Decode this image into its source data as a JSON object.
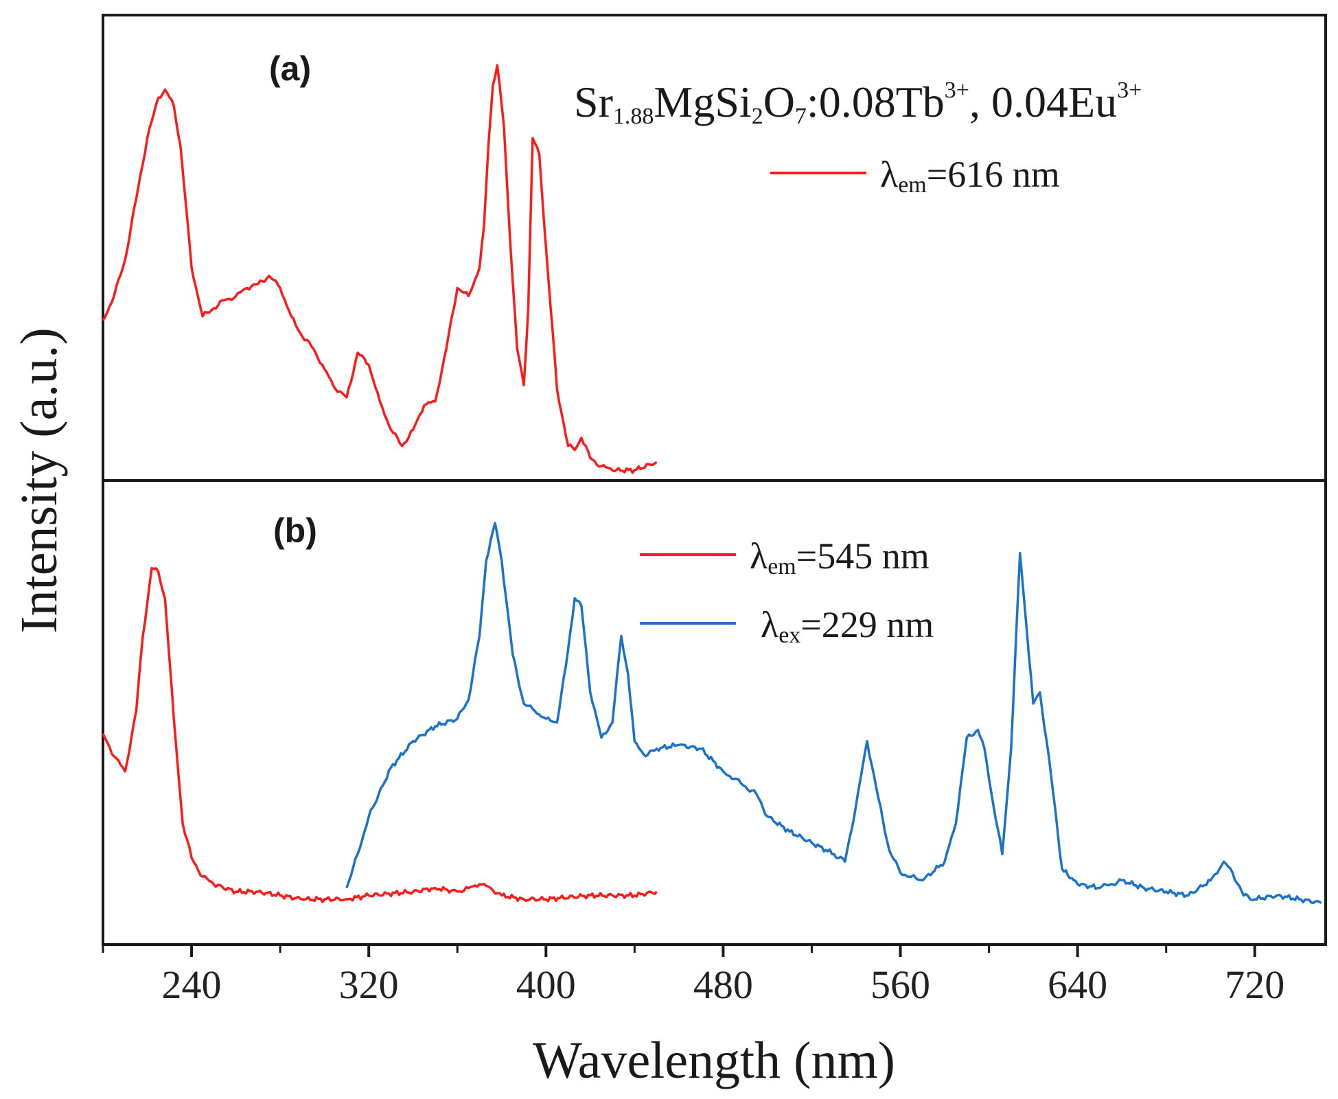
{
  "chart_data": [
    {
      "panel": "a",
      "type": "line",
      "panel_label": "(a)",
      "compound": {
        "prefix": "Sr",
        "sub1": "1.88",
        "mid1": "MgSi",
        "sub2": "2",
        "mid2": "O",
        "sub3": "7",
        "mid3": ":0.08Tb",
        "sup1": "3+",
        "mid4": ", 0.04Eu",
        "sup2": "3+"
      },
      "series": [
        {
          "name": "excitation at 616 nm emission",
          "legend": {
            "symbol": "λ",
            "sub": "em",
            "value": "=616 nm"
          },
          "color": "#ff1a1a",
          "x": [
            200,
            205,
            210,
            215,
            220,
            225,
            228,
            232,
            235,
            240,
            245,
            250,
            255,
            260,
            265,
            270,
            275,
            280,
            285,
            290,
            295,
            300,
            305,
            310,
            315,
            320,
            325,
            330,
            335,
            340,
            345,
            350,
            355,
            360,
            365,
            370,
            372,
            374,
            376,
            378,
            381,
            384,
            387,
            390,
            392,
            394,
            397,
            400,
            405,
            410,
            413,
            416,
            420,
            425,
            430,
            440,
            450
          ],
          "y": [
            0.37,
            0.43,
            0.52,
            0.67,
            0.82,
            0.92,
            0.94,
            0.9,
            0.8,
            0.5,
            0.38,
            0.4,
            0.42,
            0.43,
            0.45,
            0.46,
            0.48,
            0.45,
            0.38,
            0.33,
            0.3,
            0.25,
            0.2,
            0.18,
            0.29,
            0.26,
            0.17,
            0.1,
            0.06,
            0.1,
            0.16,
            0.17,
            0.3,
            0.45,
            0.43,
            0.5,
            0.6,
            0.8,
            0.95,
            1.0,
            0.85,
            0.55,
            0.3,
            0.21,
            0.4,
            0.82,
            0.78,
            0.55,
            0.2,
            0.06,
            0.05,
            0.08,
            0.03,
            0.01,
            0.0,
            0.0,
            0.02
          ]
        }
      ]
    },
    {
      "panel": "b",
      "type": "line",
      "panel_label": "(b)",
      "series": [
        {
          "name": "excitation at 545 nm emission",
          "legend": {
            "symbol": "λ",
            "sub": "em",
            "value": "=545 nm"
          },
          "color": "#ff1a1a",
          "x": [
            200,
            205,
            210,
            215,
            218,
            222,
            225,
            228,
            232,
            236,
            240,
            245,
            250,
            260,
            270,
            280,
            290,
            300,
            310,
            320,
            340,
            350,
            360,
            365,
            370,
            375,
            380,
            390,
            400,
            420,
            440,
            450
          ],
          "y": [
            0.44,
            0.38,
            0.34,
            0.5,
            0.7,
            0.88,
            0.87,
            0.8,
            0.48,
            0.2,
            0.11,
            0.06,
            0.04,
            0.02,
            0.02,
            0.01,
            0.0,
            0.0,
            0.0,
            0.01,
            0.02,
            0.03,
            0.02,
            0.03,
            0.04,
            0.03,
            0.01,
            0.0,
            0.0,
            0.01,
            0.01,
            0.02
          ]
        },
        {
          "name": "emission under 229 nm excitation",
          "legend": {
            "symbol": "λ",
            "sub": "ex",
            "value": "=229 nm"
          },
          "color": "#1a73c8",
          "x": [
            310,
            315,
            320,
            330,
            340,
            350,
            360,
            365,
            370,
            373,
            377,
            380,
            385,
            390,
            395,
            400,
            405,
            409,
            413,
            416,
            420,
            425,
            430,
            434,
            437,
            440,
            445,
            450,
            460,
            470,
            480,
            485,
            490,
            495,
            500,
            510,
            520,
            530,
            535,
            540,
            545,
            550,
            555,
            560,
            565,
            570,
            580,
            585,
            590,
            595,
            598,
            602,
            606,
            610,
            614,
            617,
            620,
            623,
            627,
            633,
            640,
            650,
            655,
            660,
            670,
            680,
            690,
            700,
            704,
            706,
            710,
            715,
            720,
            730,
            740,
            750
          ],
          "y": [
            0.03,
            0.12,
            0.22,
            0.35,
            0.42,
            0.46,
            0.48,
            0.53,
            0.7,
            0.9,
            1.0,
            0.9,
            0.65,
            0.52,
            0.5,
            0.48,
            0.47,
            0.62,
            0.8,
            0.78,
            0.55,
            0.43,
            0.47,
            0.7,
            0.6,
            0.42,
            0.38,
            0.4,
            0.41,
            0.4,
            0.34,
            0.32,
            0.3,
            0.28,
            0.22,
            0.18,
            0.15,
            0.12,
            0.1,
            0.25,
            0.42,
            0.27,
            0.13,
            0.07,
            0.06,
            0.05,
            0.1,
            0.2,
            0.43,
            0.45,
            0.4,
            0.25,
            0.12,
            0.4,
            0.92,
            0.72,
            0.52,
            0.55,
            0.38,
            0.08,
            0.04,
            0.03,
            0.04,
            0.05,
            0.03,
            0.02,
            0.01,
            0.05,
            0.08,
            0.1,
            0.07,
            0.01,
            0.0,
            0.01,
            0.0,
            -0.01
          ]
        }
      ]
    }
  ],
  "xaxis": {
    "label": "Wavelength (nm)",
    "min": 200,
    "max": 752,
    "major_ticks": [
      240,
      320,
      400,
      480,
      560,
      640,
      720
    ],
    "minor_ticks": [
      200,
      280,
      360,
      440,
      520,
      600,
      680
    ]
  },
  "yaxis": {
    "label": "Intensity (a.u.)"
  }
}
